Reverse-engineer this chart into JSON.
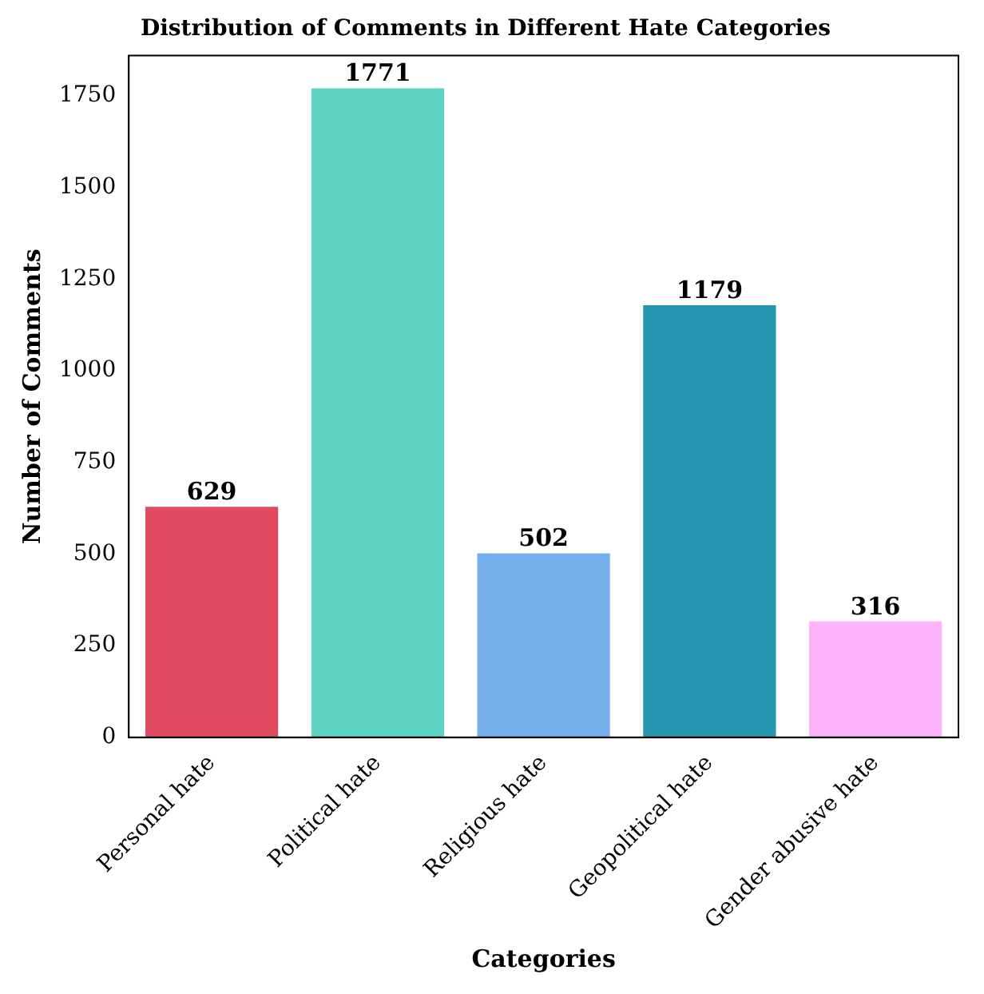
{
  "chart_data": {
    "type": "bar",
    "title": "Distribution of Comments in Different Hate Categories",
    "xlabel": "Categories",
    "ylabel": "Number of Comments",
    "categories": [
      "Personal hate",
      "Political hate",
      "Religious hate",
      "Geopolitical hate",
      "Gender abusive hate"
    ],
    "values": [
      629,
      1771,
      502,
      1179,
      316
    ],
    "colors": [
      "#e04a60",
      "#5fd3c3",
      "#74aeeb",
      "#2596b0",
      "#fdb3f9"
    ],
    "ylim": [
      0,
      1860
    ],
    "yticks": [
      0,
      250,
      500,
      750,
      1000,
      1250,
      1500,
      1750
    ],
    "grid": false,
    "legend": false,
    "data_labels": true
  }
}
